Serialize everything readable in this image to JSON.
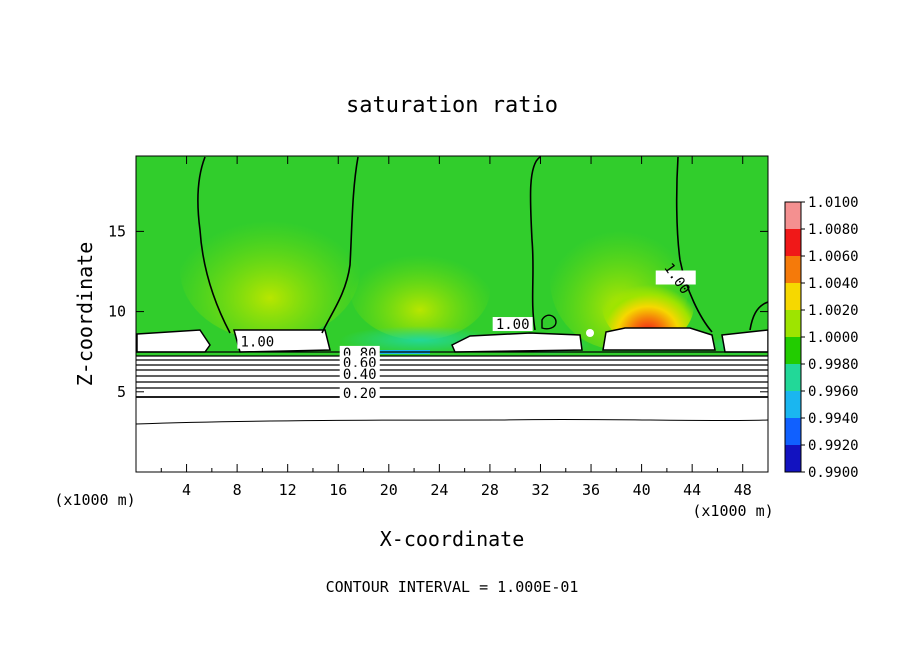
{
  "chart_data": {
    "type": "heatmap",
    "title": "saturation ratio",
    "xlabel": "X-coordinate",
    "ylabel": "Z-coordinate",
    "x_unit_label": "(x1000 m)",
    "y_unit_label": "(x1000 m)",
    "xlim": [
      0,
      50
    ],
    "ylim": [
      0,
      19.7
    ],
    "x_ticks": [
      4,
      8,
      12,
      16,
      20,
      24,
      28,
      32,
      36,
      40,
      44,
      48
    ],
    "y_ticks": [
      5,
      10,
      15
    ],
    "footer": "CONTOUR INTERVAL = 1.000E-01",
    "colorbar": {
      "levels": [
        "1.0100",
        "1.0080",
        "1.0060",
        "1.0040",
        "1.0020",
        "1.0000",
        "0.9980",
        "0.9960",
        "0.9940",
        "0.9920",
        "0.9900"
      ],
      "colors": [
        "#f49090",
        "#f01818",
        "#f57a0a",
        "#f6d800",
        "#9ee400",
        "#22cc00",
        "#22d898",
        "#1ab6f0",
        "#1060ff",
        "#1212c0",
        "#6a20a8"
      ]
    },
    "background_color": "#31cd2c",
    "contour_labels": [
      {
        "text": "1.00",
        "x": 9.6,
        "z": 8.0
      },
      {
        "text": "1.00",
        "x": 29.8,
        "z": 9.1
      },
      {
        "text": "1.00",
        "x": 42.7,
        "z": 12.0
      },
      {
        "text": "0.80",
        "x": 17.7,
        "z": 7.3
      },
      {
        "text": "0.60",
        "x": 17.7,
        "z": 6.7
      },
      {
        "text": "0.40",
        "x": 17.7,
        "z": 6.0
      },
      {
        "text": "0.20",
        "x": 17.7,
        "z": 4.8
      }
    ],
    "contour_levels": [
      1.0,
      0.9,
      0.8,
      0.7,
      0.6,
      0.5,
      0.4,
      0.3,
      0.2,
      0.1
    ]
  }
}
